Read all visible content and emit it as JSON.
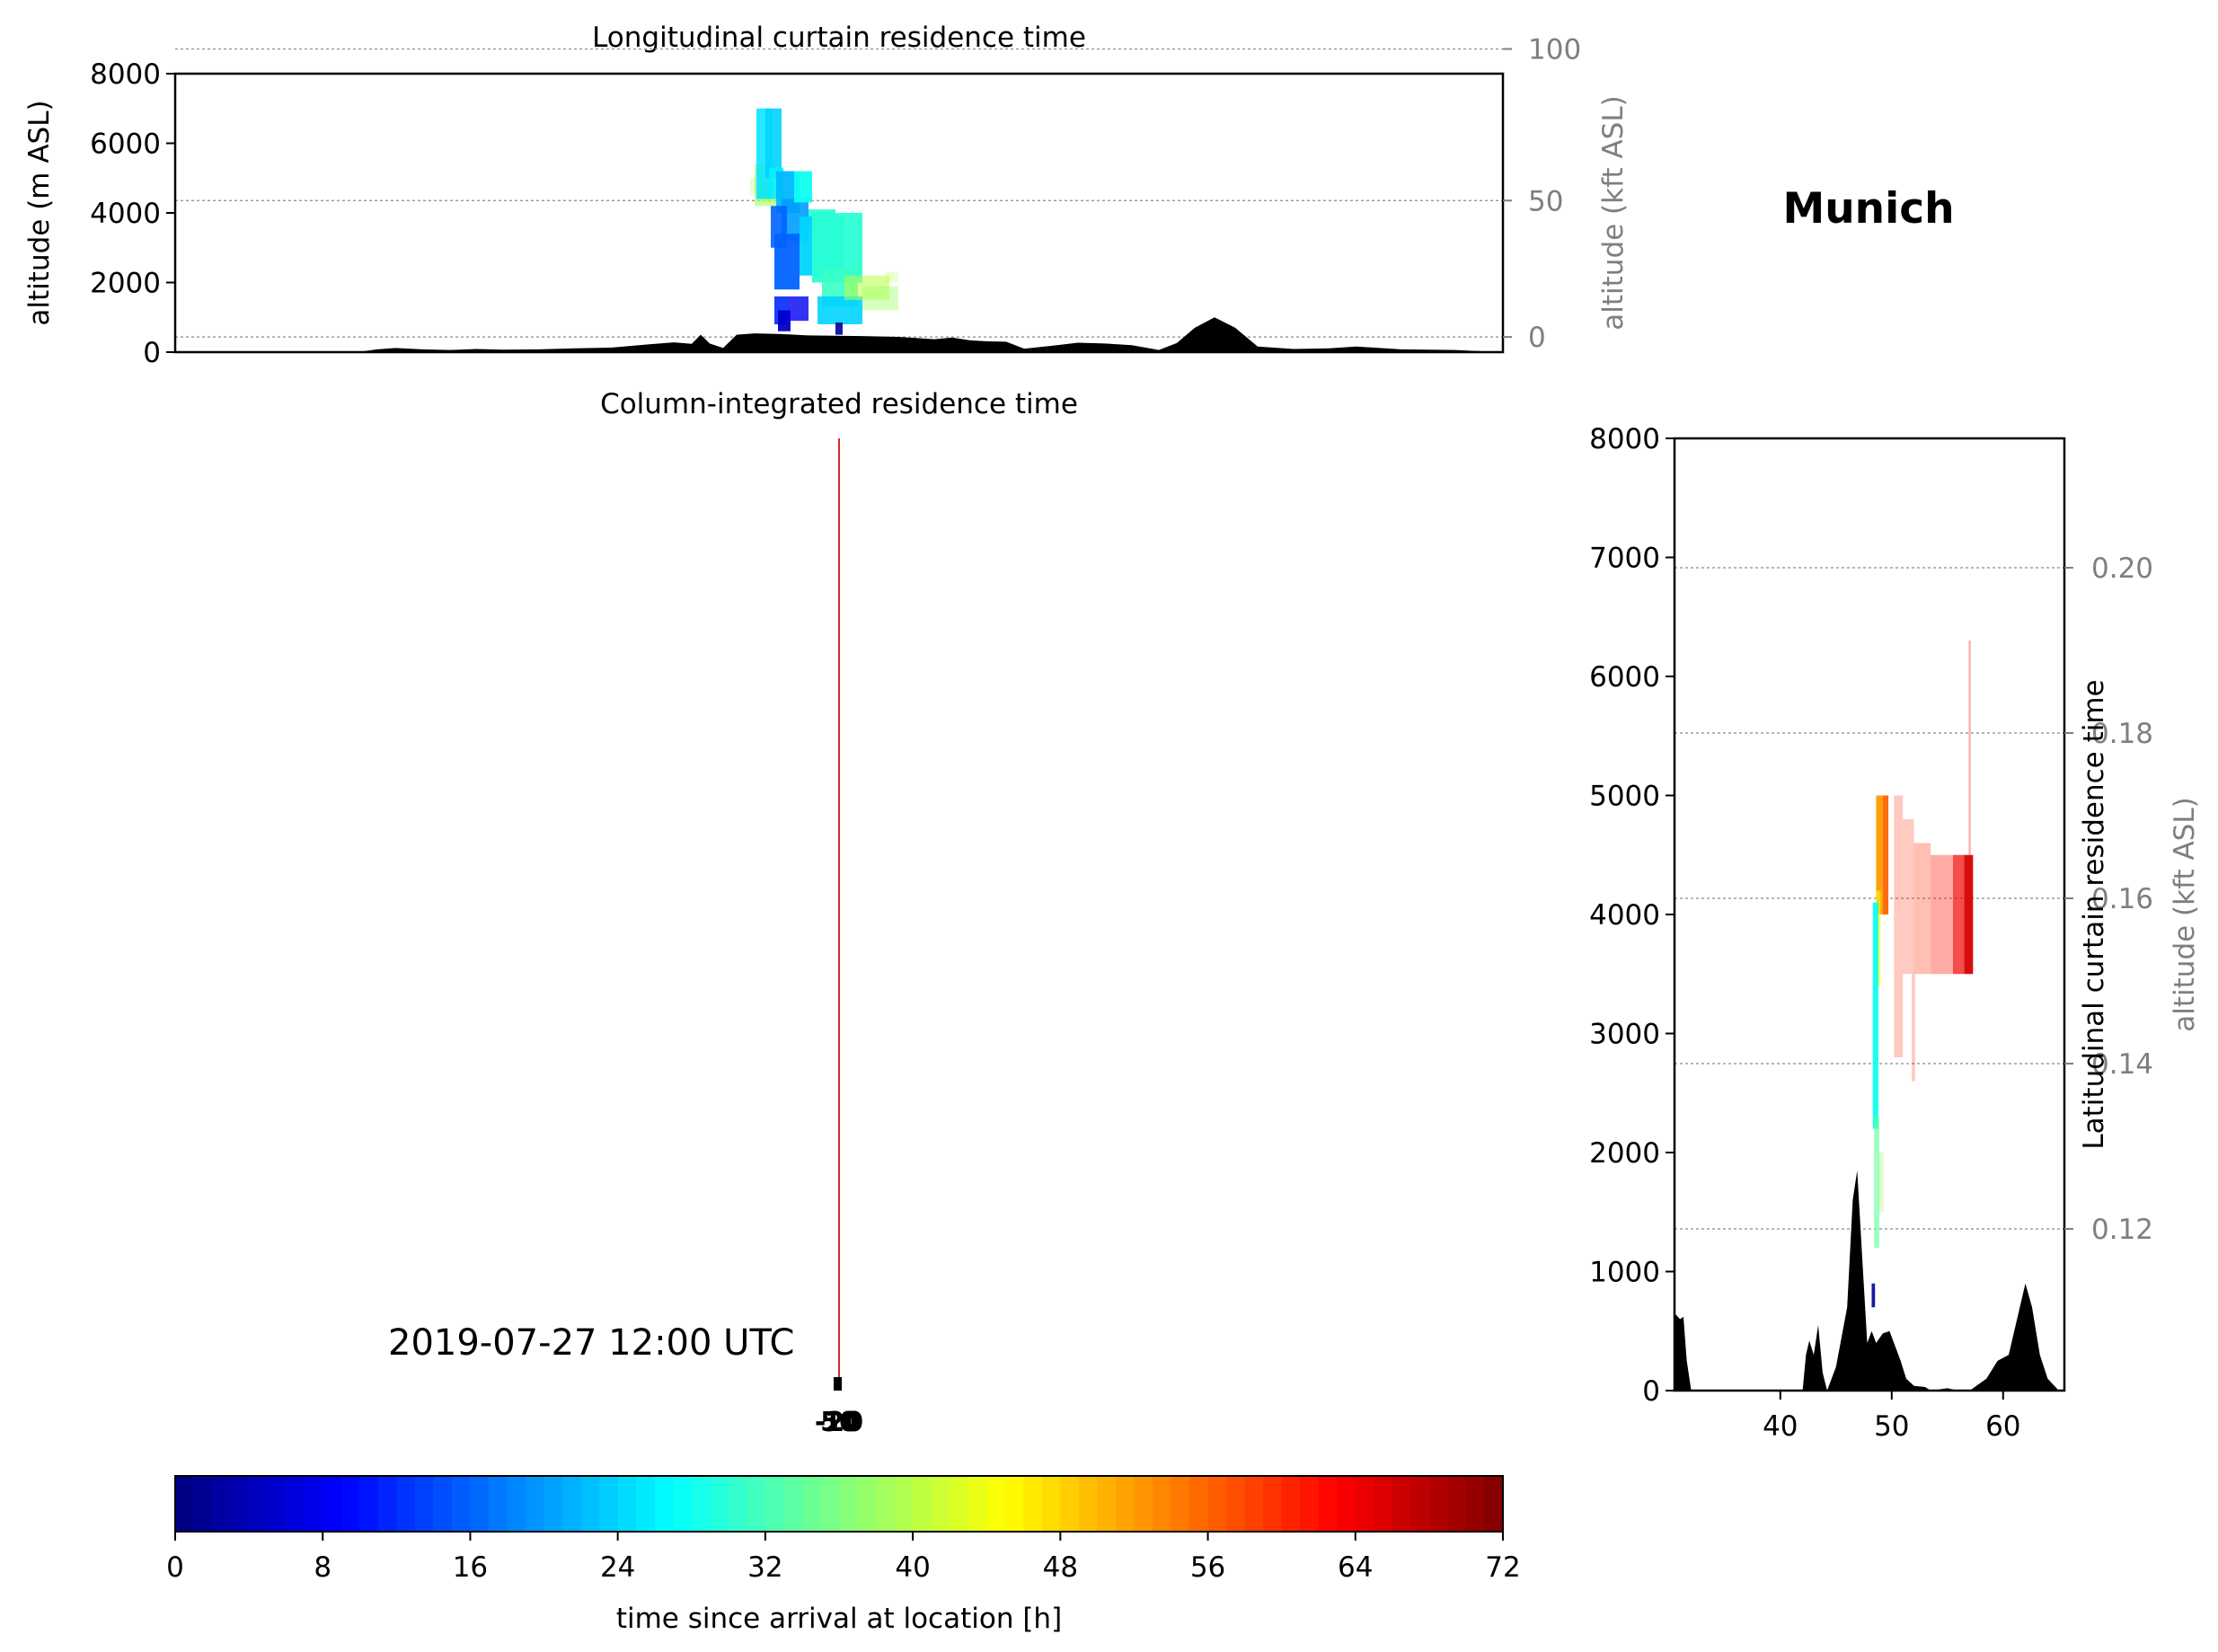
{
  "figure": {
    "location_title": "Munich"
  },
  "chart_data": [
    {
      "type": "heatmap",
      "title": "Longitudinal curtain residence time",
      "ylabel": "altitude (m ASL)",
      "ylabel_right": "altitude (kft ASL)",
      "ylim": [
        0,
        8000
      ],
      "y_ticks": [
        "0",
        "2000",
        "4000",
        "6000",
        "8000"
      ],
      "y_right_ticks": [
        "0",
        "50",
        "100"
      ],
      "y_right_gridlines_kft": [
        0,
        50,
        100
      ],
      "grid": true,
      "colormap": "jet",
      "color_value_range_h": [
        0,
        72
      ],
      "topography_color": "#000000"
    },
    {
      "type": "heatmap",
      "title": "Column-integrated residence time",
      "timestamp": "2019-07-27 12:00 UTC",
      "release_marker_color": "#d62728"
    },
    {
      "type": "heatmap",
      "title": "Latitudinal curtain residence time",
      "ylabel_right": "altitude (kft ASL)",
      "x_ticks": [
        "40",
        "50",
        "60"
      ],
      "x_tick_values": [
        40,
        50,
        60
      ],
      "xlim": [
        30.5,
        65.5
      ],
      "ylim": [
        0,
        8000
      ],
      "y_ticks": [
        "0",
        "1000",
        "2000",
        "3000",
        "4000",
        "5000",
        "6000",
        "7000",
        "8000"
      ],
      "y_right_ticks": [
        "0.12",
        "0.14",
        "0.16",
        "0.18",
        "0.20"
      ],
      "grid": true,
      "colormap": "jet",
      "topography_color": "#000000"
    },
    {
      "type": "colorbar",
      "label": "time since arrival at location [h]",
      "range": [
        0,
        72
      ],
      "ticks": [
        "0",
        "8",
        "16",
        "24",
        "32",
        "40",
        "48",
        "56",
        "64",
        "72"
      ],
      "colormap": "jet",
      "levels": 72
    }
  ]
}
